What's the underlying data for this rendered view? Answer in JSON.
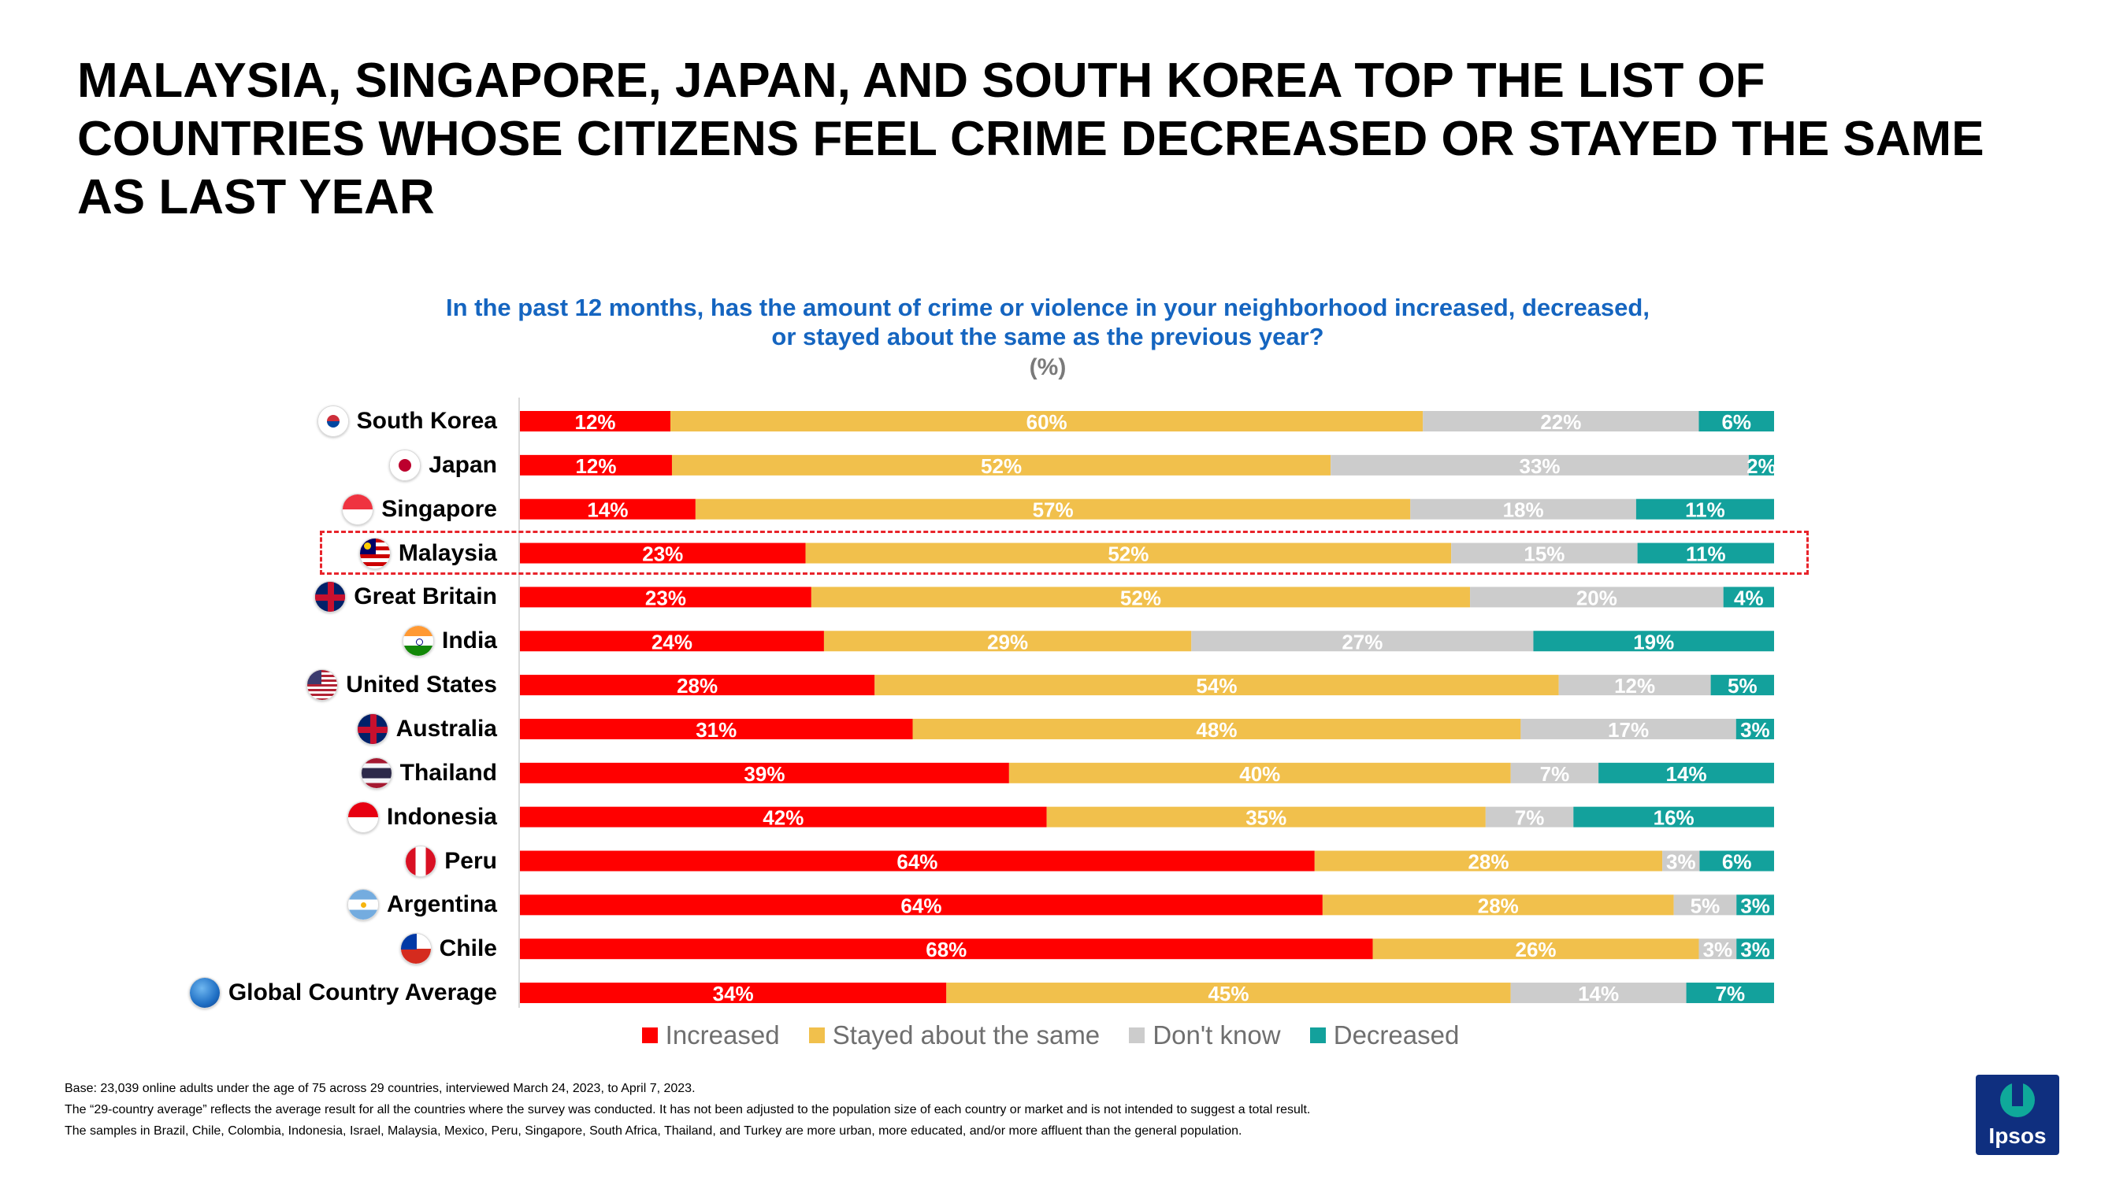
{
  "title": "MALAYSIA, SINGAPORE, JAPAN, AND SOUTH KOREA TOP THE LIST OF COUNTRIES WHOSE CITIZENS FEEL CRIME DECREASED OR STAYED THE SAME AS LAST YEAR",
  "question_line1": "In the past 12 months, has the amount of crime or violence in your neighborhood increased, decreased,",
  "question_line2": "or stayed about the same as the previous year?",
  "unit": "(%)",
  "colors": {
    "increased": "#ff0000",
    "same": "#f1c04c",
    "dontknow": "#cccccc",
    "decreased": "#13a19c",
    "question": "#1565c0",
    "highlight": "#e8242b"
  },
  "chart_data": {
    "type": "bar",
    "orientation": "horizontal",
    "stacked": true,
    "title": "In the past 12 months, has the amount of crime or violence in your neighborhood increased, decreased, or stayed about the same as the previous year?",
    "unit": "%",
    "xlim": [
      0,
      100
    ],
    "legend_position": "bottom",
    "highlighted_category": "Malaysia",
    "categories": [
      "South Korea",
      "Japan",
      "Singapore",
      "Malaysia",
      "Great Britain",
      "India",
      "United States",
      "Australia",
      "Thailand",
      "Indonesia",
      "Peru",
      "Argentina",
      "Chile",
      "Global Country Average"
    ],
    "series": [
      {
        "name": "Increased",
        "key": "increased",
        "values": [
          12,
          12,
          14,
          23,
          23,
          24,
          28,
          31,
          39,
          42,
          64,
          64,
          68,
          34
        ]
      },
      {
        "name": "Stayed about the same",
        "key": "same",
        "values": [
          60,
          52,
          57,
          52,
          52,
          29,
          54,
          48,
          40,
          35,
          28,
          28,
          26,
          45
        ]
      },
      {
        "name": "Don't know",
        "key": "dontknow",
        "values": [
          22,
          33,
          18,
          15,
          20,
          27,
          12,
          17,
          7,
          7,
          3,
          5,
          3,
          14
        ]
      },
      {
        "name": "Decreased",
        "key": "decreased",
        "values": [
          6,
          2,
          11,
          11,
          4,
          19,
          5,
          3,
          14,
          16,
          6,
          3,
          3,
          7
        ]
      }
    ]
  },
  "footnotes": [
    "Base: 23,039 online adults under the age of 75 across 29 countries, interviewed March 24, 2023, to April 7, 2023.",
    "The “29-country average” reflects the average result for all the countries where the survey was conducted. It has not been adjusted to the population size of each country or market and is not intended to suggest a total result.",
    "The samples in Brazil, Chile, Colombia, Indonesia, Israel, Malaysia, Mexico, Peru, Singapore, South Africa, Thailand, and Turkey are more urban, more educated, and/or more affluent than the general population."
  ],
  "logo_text": "Ipsos"
}
